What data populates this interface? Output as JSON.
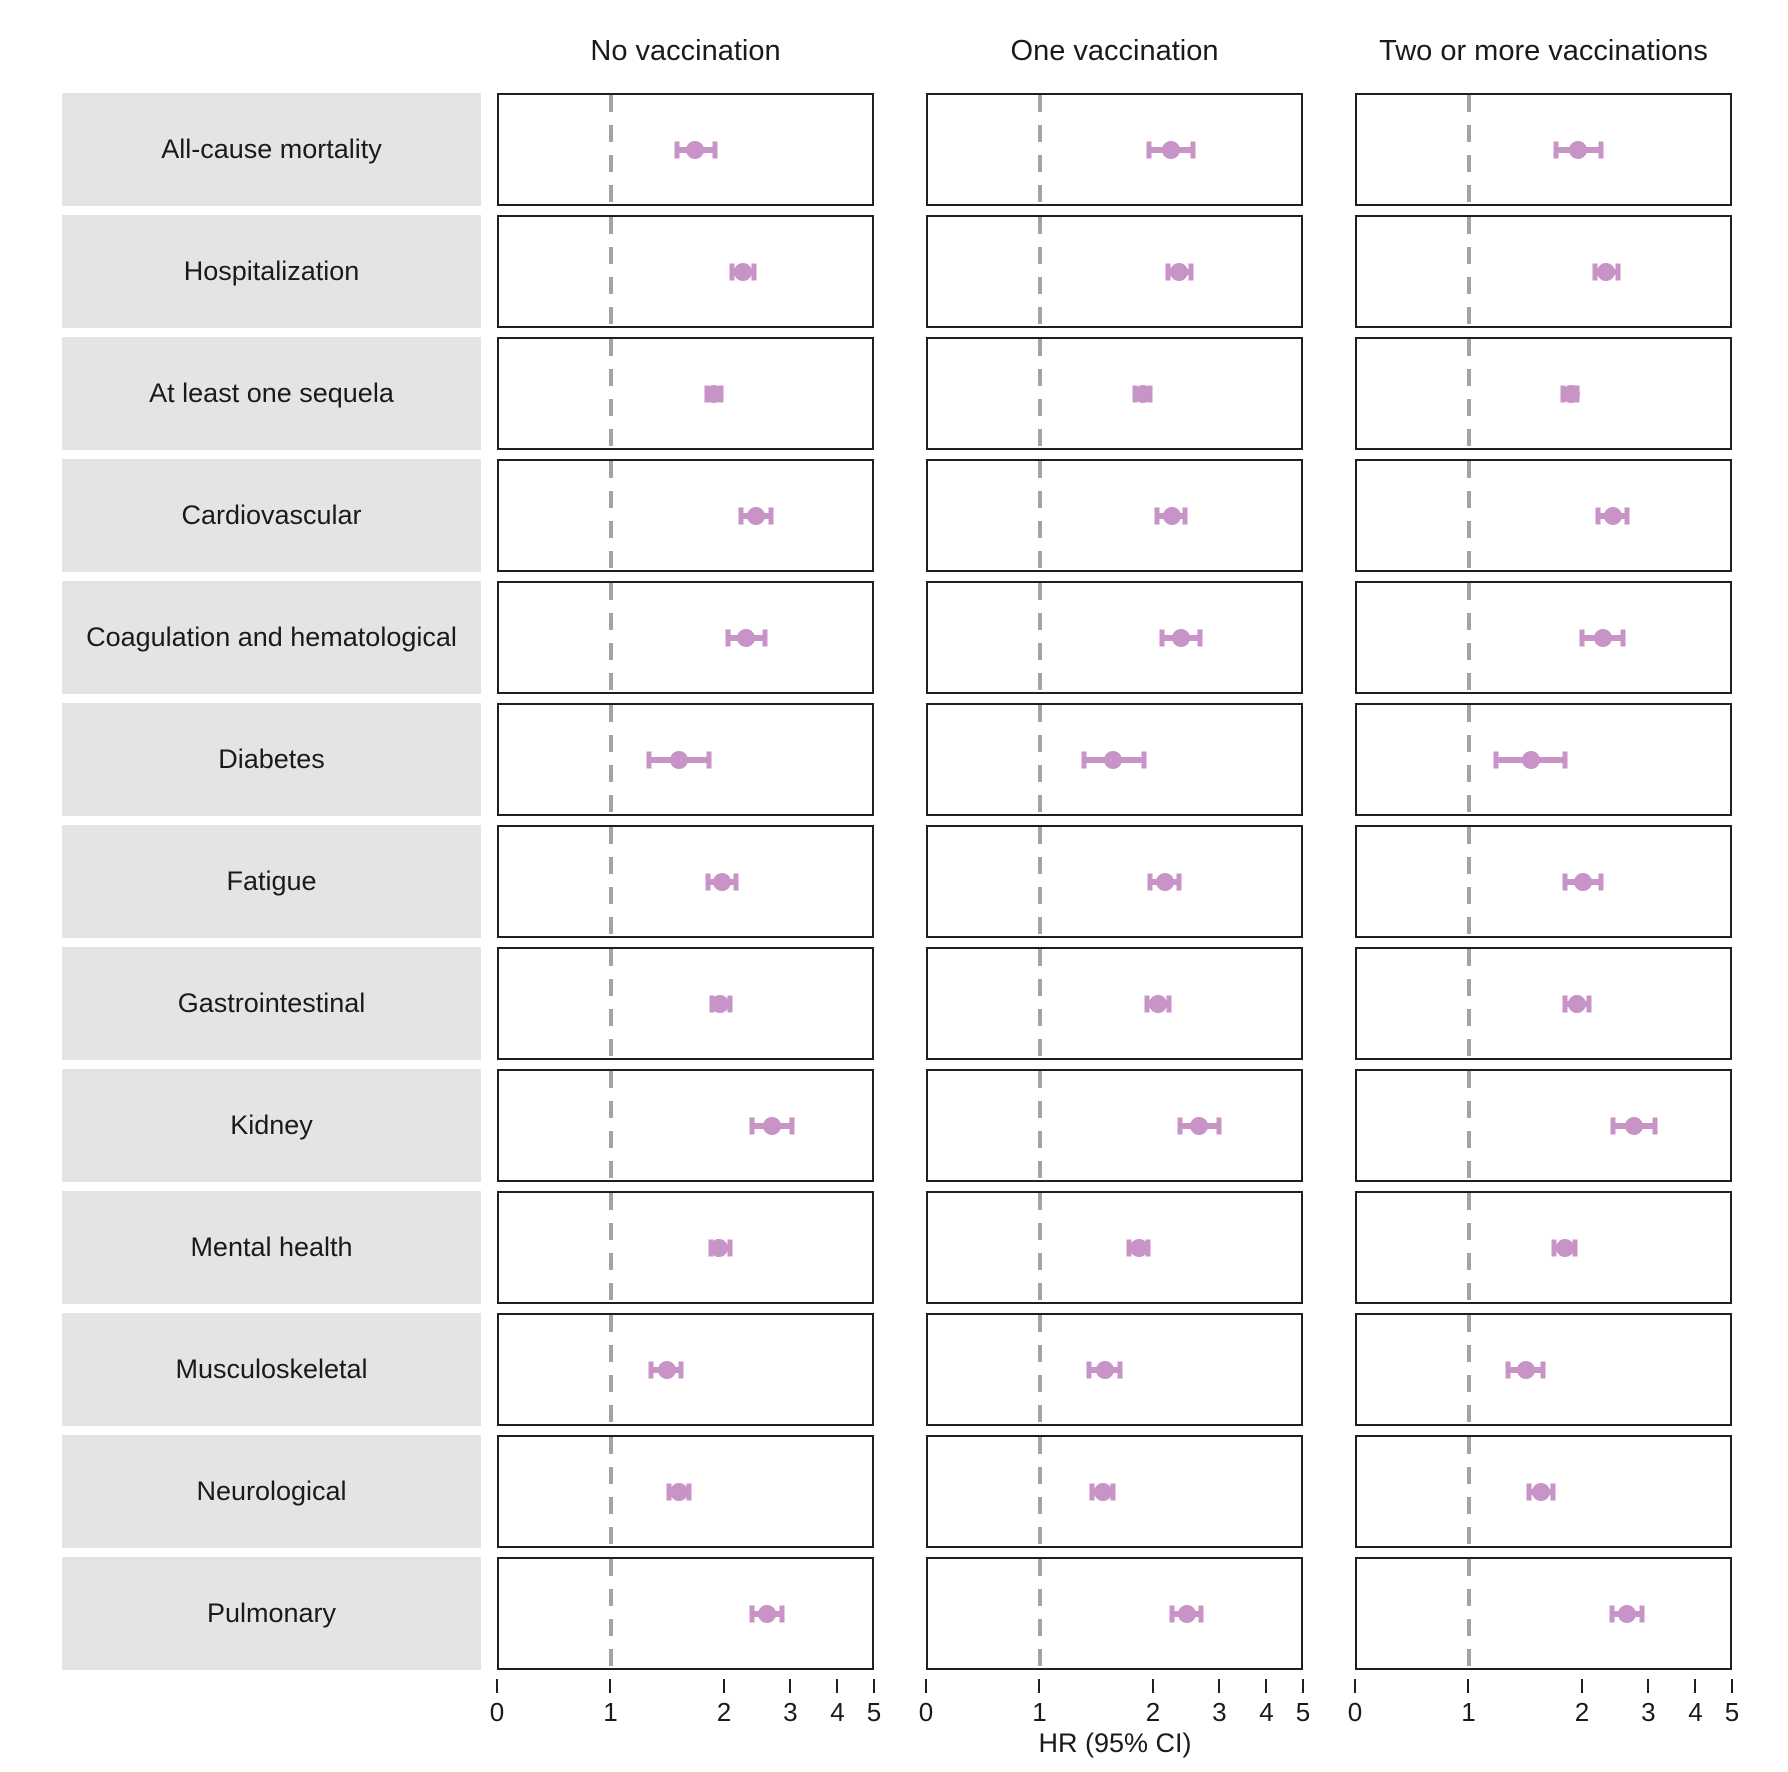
{
  "chart_data": {
    "type": "forest",
    "xlabel": "HR (95% CI)",
    "x_ticks": [
      0,
      1,
      2,
      3,
      4,
      5
    ],
    "x_scale": "symlog: linear from 0 to 1, logarithmic (base 2 spacing) above 1",
    "x_range": [
      0,
      5
    ],
    "reference_line": 1,
    "grid": "off",
    "panels": [
      "No vaccination",
      "One vaccination",
      "Two or more vaccinations"
    ],
    "outcomes": [
      "All-cause mortality",
      "Hospitalization",
      "At least one sequela",
      "Cardiovascular",
      "Coagulation and hematological",
      "Diabetes",
      "Fatigue",
      "Gastrointestinal",
      "Kidney",
      "Mental health",
      "Musculoskeletal",
      "Neurological",
      "Pulmonary"
    ],
    "series": [
      {
        "name": "No vaccination",
        "values": [
          {
            "hr": 1.68,
            "lo": 1.5,
            "hi": 1.9
          },
          {
            "hr": 2.26,
            "lo": 2.11,
            "hi": 2.42
          },
          {
            "hr": 1.89,
            "lo": 1.8,
            "hi": 1.97
          },
          {
            "hr": 2.44,
            "lo": 2.23,
            "hi": 2.68
          },
          {
            "hr": 2.3,
            "lo": 2.06,
            "hi": 2.58
          },
          {
            "hr": 1.52,
            "lo": 1.26,
            "hi": 1.83
          },
          {
            "hr": 1.98,
            "lo": 1.82,
            "hi": 2.16
          },
          {
            "hr": 1.96,
            "lo": 1.86,
            "hi": 2.08
          },
          {
            "hr": 2.69,
            "lo": 2.38,
            "hi": 3.06
          },
          {
            "hr": 1.95,
            "lo": 1.85,
            "hi": 2.08
          },
          {
            "hr": 1.41,
            "lo": 1.28,
            "hi": 1.54
          },
          {
            "hr": 1.52,
            "lo": 1.43,
            "hi": 1.62
          },
          {
            "hr": 2.61,
            "lo": 2.39,
            "hi": 2.86
          }
        ]
      },
      {
        "name": "One vaccination",
        "values": [
          {
            "hr": 2.24,
            "lo": 1.96,
            "hi": 2.57
          },
          {
            "hr": 2.35,
            "lo": 2.2,
            "hi": 2.53
          },
          {
            "hr": 1.88,
            "lo": 1.79,
            "hi": 1.97
          },
          {
            "hr": 2.25,
            "lo": 2.05,
            "hi": 2.44
          },
          {
            "hr": 2.39,
            "lo": 2.12,
            "hi": 2.68
          },
          {
            "hr": 1.57,
            "lo": 1.31,
            "hi": 1.9
          },
          {
            "hr": 2.16,
            "lo": 1.97,
            "hi": 2.36
          },
          {
            "hr": 2.07,
            "lo": 1.93,
            "hi": 2.21
          },
          {
            "hr": 2.67,
            "lo": 2.37,
            "hi": 3.01
          },
          {
            "hr": 1.84,
            "lo": 1.73,
            "hi": 1.95
          },
          {
            "hr": 1.49,
            "lo": 1.35,
            "hi": 1.64
          },
          {
            "hr": 1.47,
            "lo": 1.38,
            "hi": 1.57
          },
          {
            "hr": 2.47,
            "lo": 2.25,
            "hi": 2.7
          }
        ]
      },
      {
        "name": "Two or more vaccinations",
        "values": [
          {
            "hr": 1.96,
            "lo": 1.71,
            "hi": 2.25
          },
          {
            "hr": 2.32,
            "lo": 2.17,
            "hi": 2.5
          },
          {
            "hr": 1.87,
            "lo": 1.78,
            "hi": 1.95
          },
          {
            "hr": 2.43,
            "lo": 2.21,
            "hi": 2.65
          },
          {
            "hr": 2.28,
            "lo": 2.0,
            "hi": 2.59
          },
          {
            "hr": 1.46,
            "lo": 1.18,
            "hi": 1.8
          },
          {
            "hr": 2.02,
            "lo": 1.81,
            "hi": 2.25
          },
          {
            "hr": 1.94,
            "lo": 1.8,
            "hi": 2.09
          },
          {
            "hr": 2.77,
            "lo": 2.43,
            "hi": 3.14
          },
          {
            "hr": 1.8,
            "lo": 1.69,
            "hi": 1.92
          },
          {
            "hr": 1.42,
            "lo": 1.27,
            "hi": 1.58
          },
          {
            "hr": 1.56,
            "lo": 1.45,
            "hi": 1.68
          },
          {
            "hr": 2.64,
            "lo": 2.41,
            "hi": 2.9
          }
        ]
      }
    ],
    "colors": {
      "marker": "#c893c6",
      "reference_line": "#a3a3a3",
      "panel_border": "#1f1f1f",
      "label_box": "#e4e4e4",
      "text": "#1a1a1a"
    }
  }
}
